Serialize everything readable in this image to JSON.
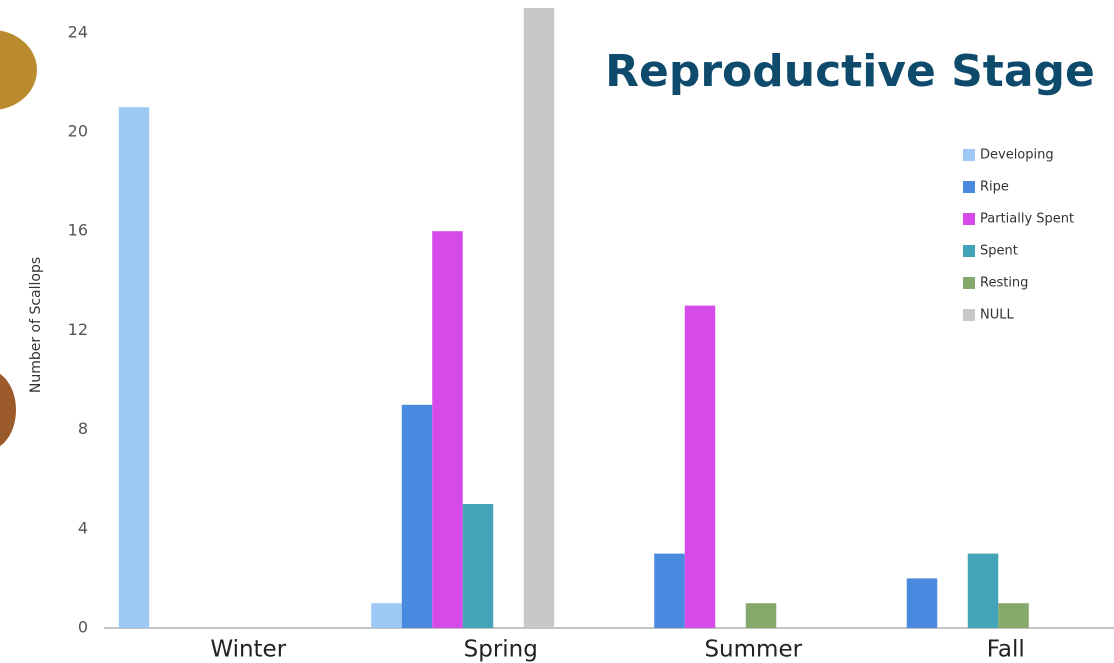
{
  "chart_data": {
    "type": "bar",
    "title": "Reproductive Stage",
    "y_label": "Number of Scallops",
    "categories": [
      "Winter",
      "Spring",
      "Summer",
      "Fall"
    ],
    "series": [
      {
        "name": "Developing",
        "color": "#9ec9f5",
        "values": [
          21,
          1,
          0,
          0
        ]
      },
      {
        "name": "Ripe",
        "color": "#4a89e0",
        "values": [
          0,
          9,
          3,
          2
        ]
      },
      {
        "name": "Partially Spent",
        "color": "#d54ae8",
        "values": [
          0,
          16,
          13,
          0
        ]
      },
      {
        "name": "Spent",
        "color": "#43a3b8",
        "values": [
          0,
          5,
          0,
          3
        ]
      },
      {
        "name": "Resting",
        "color": "#86a86a",
        "values": [
          0,
          0,
          1,
          1
        ]
      },
      {
        "name": "NULL",
        "color": "#c8c8c8",
        "values": [
          0,
          25,
          0,
          0
        ]
      }
    ],
    "ylim": [
      0,
      25
    ],
    "yticks": [
      0,
      4,
      8,
      12,
      16,
      20,
      24
    ],
    "grid": false,
    "legend": "right"
  }
}
